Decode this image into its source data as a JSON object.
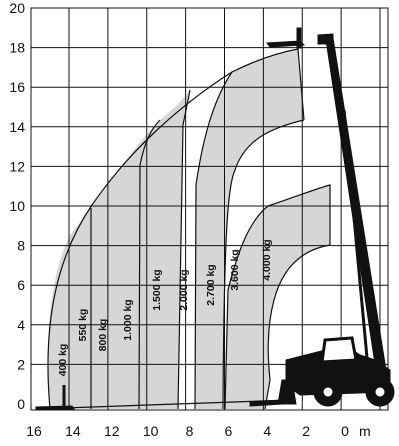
{
  "diagram": {
    "type": "telehandler load chart",
    "x_axis": {
      "ticks": [
        "16",
        "14",
        "12",
        "10",
        "8",
        "6",
        "4",
        "2",
        "0"
      ],
      "unit": "m"
    },
    "y_axis": {
      "ticks": [
        "0",
        "2",
        "4",
        "6",
        "8",
        "10",
        "12",
        "14",
        "16",
        "18",
        "20"
      ]
    },
    "zones": [
      {
        "label": "400 kg",
        "shaded": true
      },
      {
        "label": "550 kg",
        "shaded": false
      },
      {
        "label": "800 kg",
        "shaded": true
      },
      {
        "label": "1.000 kg",
        "shaded": false
      },
      {
        "label": "1.500 kg",
        "shaded": true
      },
      {
        "label": "2.000 kg",
        "shaded": false
      },
      {
        "label": "2.700 kg",
        "shaded": true
      },
      {
        "label": "3.600 kg",
        "shaded": false
      },
      {
        "label": "4.000 kg",
        "shaded": true
      }
    ],
    "colors": {
      "shade": "#d6d6d6",
      "line": "#111111",
      "machine": "#111111"
    }
  }
}
